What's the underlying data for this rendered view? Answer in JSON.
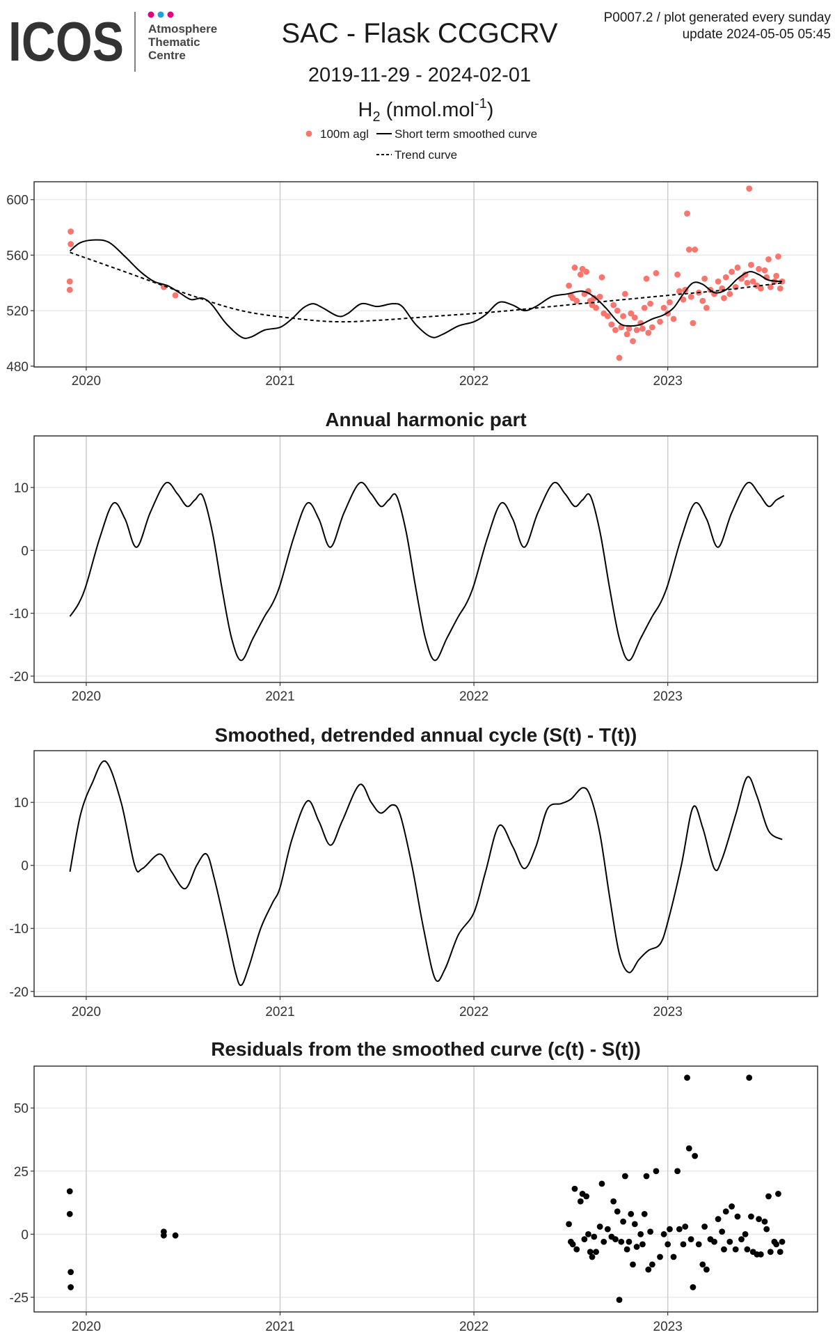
{
  "header": {
    "logo": "ICOS",
    "org": [
      "Atmosphere",
      "Thematic",
      "Centre"
    ],
    "meta": [
      "P0007.2 / plot generated every sunday",
      "update  2024-05-05 05:45"
    ]
  },
  "chart_data": [
    {
      "type": "line",
      "title": "SAC - Flask CCGCRV",
      "subtitle": "2019-11-29 - 2024-02-01",
      "ylabel": {
        "main": "H",
        "sub": "2",
        "unit": " (nmol.mol",
        "sup": "-1",
        "close": ")"
      },
      "xlim": [
        2019.731,
        2023.773
      ],
      "xticks": [
        2020,
        2021,
        2022,
        2023
      ],
      "ylim": [
        479.4,
        612.9
      ],
      "yticks": [
        480,
        520,
        560,
        600
      ],
      "grid": true,
      "legend": "top",
      "series": [
        {
          "name": "100m agl",
          "color": "#f8766d",
          "style": "points",
          "x": [
            2019.915,
            2019.915,
            2019.92,
            2019.92,
            2020.4,
            2020.46,
            2022.49,
            2022.5,
            2022.51,
            2022.52,
            2022.53,
            2022.55,
            2022.56,
            2022.57,
            2022.58,
            2022.59,
            2022.6,
            2022.61,
            2022.62,
            2022.63,
            2022.65,
            2022.66,
            2022.67,
            2022.69,
            2022.71,
            2022.72,
            2022.73,
            2022.74,
            2022.75,
            2022.76,
            2022.77,
            2022.78,
            2022.79,
            2022.8,
            2022.81,
            2022.82,
            2022.83,
            2022.84,
            2022.86,
            2022.87,
            2022.88,
            2022.89,
            2022.9,
            2022.91,
            2022.92,
            2022.94,
            2022.96,
            2022.98,
            2023.0,
            2023.01,
            2023.03,
            2023.05,
            2023.06,
            2023.08,
            2023.09,
            2023.1,
            2023.11,
            2023.12,
            2023.13,
            2023.14,
            2023.16,
            2023.18,
            2023.19,
            2023.2,
            2023.22,
            2023.24,
            2023.26,
            2023.28,
            2023.29,
            2023.3,
            2023.32,
            2023.33,
            2023.35,
            2023.36,
            2023.38,
            2023.4,
            2023.41,
            2023.42,
            2023.43,
            2023.44,
            2023.46,
            2023.47,
            2023.48,
            2023.5,
            2023.51,
            2023.52,
            2023.53,
            2023.55,
            2023.56,
            2023.57,
            2023.58,
            2023.59
          ],
          "values": [
            541,
            535,
            577,
            568,
            537,
            531,
            538,
            531,
            529,
            551,
            527,
            546,
            550,
            532,
            548,
            534,
            527,
            524,
            529,
            522,
            530,
            544,
            518,
            516,
            510,
            524,
            506,
            520,
            486,
            508,
            516,
            532,
            503,
            507,
            518,
            498,
            515,
            506,
            511,
            507,
            522,
            543,
            504,
            525,
            508,
            547,
            512,
            522,
            518,
            526,
            514,
            546,
            534,
            528,
            535,
            590,
            564,
            530,
            511,
            564,
            533,
            527,
            543,
            522,
            535,
            532,
            541,
            536,
            529,
            544,
            532,
            548,
            537,
            551,
            543,
            546,
            540,
            608,
            553,
            541,
            538,
            550,
            536,
            549,
            544,
            557,
            537,
            541,
            545,
            559,
            536,
            541
          ]
        },
        {
          "name": "Short term smoothed curve",
          "color": "#000000",
          "style": "solid",
          "x": [
            2019.916,
            2019.97,
            2020.05,
            2020.12,
            2020.2,
            2020.28,
            2020.35,
            2020.42,
            2020.48,
            2020.54,
            2020.6,
            2020.65,
            2020.72,
            2020.8,
            2020.85,
            2020.92,
            2021,
            2021.06,
            2021.12,
            2021.17,
            2021.22,
            2021.3,
            2021.35,
            2021.42,
            2021.5,
            2021.58,
            2021.63,
            2021.7,
            2021.78,
            2021.84,
            2021.92,
            2022,
            2022.06,
            2022.13,
            2022.2,
            2022.26,
            2022.32,
            2022.4,
            2022.48,
            2022.56,
            2022.62,
            2022.68,
            2022.75,
            2022.8,
            2022.86,
            2022.92,
            2022.98,
            2023.03,
            2023.08,
            2023.13,
            2023.18,
            2023.24,
            2023.3,
            2023.36,
            2023.42,
            2023.47,
            2023.52,
            2023.59
          ],
          "values": [
            563,
            569,
            571,
            569,
            559,
            548,
            541,
            538,
            533,
            528,
            529,
            524,
            511,
            501,
            501,
            506,
            508,
            514,
            522,
            525,
            522,
            516,
            518,
            525,
            523,
            525,
            523,
            510,
            501,
            503,
            509,
            512,
            517,
            526,
            524,
            520,
            523,
            530,
            532,
            534,
            530,
            522,
            511,
            509,
            510,
            514,
            517,
            522,
            532,
            540,
            539,
            533,
            535,
            543,
            548,
            546,
            542,
            541
          ]
        },
        {
          "name": "Trend curve",
          "color": "#000000",
          "style": "dashed",
          "x": [
            2019.916,
            2020.2,
            2020.5,
            2020.8,
            2021.1,
            2021.3,
            2021.5,
            2021.8,
            2022.1,
            2022.4,
            2022.7,
            2023,
            2023.3,
            2023.59
          ],
          "values": [
            562,
            548,
            533,
            520,
            514,
            512,
            513,
            516,
            519,
            523,
            527,
            531,
            535,
            540
          ]
        }
      ]
    },
    {
      "type": "line",
      "title": "Annual harmonic part",
      "xlim": [
        2019.731,
        2023.773
      ],
      "xticks": [
        2020,
        2021,
        2022,
        2023
      ],
      "ylim": [
        -21,
        18.2
      ],
      "yticks": [
        -20,
        -10,
        0,
        10
      ],
      "grid": true,
      "series": [
        {
          "color": "#000000",
          "style": "solid",
          "x": [
            2019.916,
            2019.96,
            2020,
            2020.07,
            2020.14,
            2020.2,
            2020.26,
            2020.33,
            2020.41,
            2020.47,
            2020.52,
            2020.56,
            2020.6,
            2020.65,
            2020.7,
            2020.75,
            2020.8,
            2020.86,
            2020.92,
            2020.96,
            2021,
            2021.07,
            2021.14,
            2021.2,
            2021.26,
            2021.33,
            2021.41,
            2021.47,
            2021.52,
            2021.56,
            2021.6,
            2021.65,
            2021.7,
            2021.75,
            2021.8,
            2021.86,
            2021.92,
            2021.96,
            2022,
            2022.07,
            2022.14,
            2022.2,
            2022.26,
            2022.33,
            2022.41,
            2022.47,
            2022.52,
            2022.56,
            2022.6,
            2022.65,
            2022.7,
            2022.75,
            2022.8,
            2022.86,
            2022.92,
            2022.96,
            2023,
            2023.07,
            2023.14,
            2023.2,
            2023.26,
            2023.33,
            2023.41,
            2023.47,
            2023.52,
            2023.56,
            2023.6
          ],
          "values": [
            -10.5,
            -8.5,
            -5.5,
            2,
            7.5,
            5,
            0.5,
            6,
            10.7,
            9,
            7,
            8,
            8.7,
            3,
            -6,
            -14,
            -17.5,
            -14,
            -10.5,
            -8.5,
            -5.5,
            2,
            7.5,
            5,
            0.5,
            6,
            10.7,
            9,
            7,
            8,
            8.7,
            3,
            -6,
            -14,
            -17.5,
            -14,
            -10.5,
            -8.5,
            -5.5,
            2,
            7.5,
            5,
            0.5,
            6,
            10.7,
            9,
            7,
            8,
            8.7,
            3,
            -6,
            -14,
            -17.5,
            -14,
            -10.5,
            -8.5,
            -5.5,
            2,
            7.5,
            5,
            0.5,
            6,
            10.7,
            9,
            7,
            8,
            8.7
          ]
        }
      ]
    },
    {
      "type": "line",
      "title": "Smoothed, detrended annual cycle (S(t) - T(t))",
      "xlim": [
        2019.731,
        2023.773
      ],
      "xticks": [
        2020,
        2021,
        2022,
        2023
      ],
      "ylim": [
        -20.8,
        18.2
      ],
      "yticks": [
        -20,
        -10,
        0,
        10
      ],
      "grid": true,
      "series": [
        {
          "color": "#000000",
          "style": "solid",
          "x": [
            2019.916,
            2019.97,
            2020.03,
            2020.1,
            2020.18,
            2020.25,
            2020.29,
            2020.38,
            2020.44,
            2020.51,
            2020.57,
            2020.62,
            2020.66,
            2020.72,
            2020.77,
            2020.8,
            2020.84,
            2020.9,
            2020.96,
            2021,
            2021.06,
            2021.14,
            2021.2,
            2021.26,
            2021.32,
            2021.41,
            2021.47,
            2021.52,
            2021.58,
            2021.62,
            2021.68,
            2021.74,
            2021.8,
            2021.85,
            2021.92,
            2022,
            2022.06,
            2022.13,
            2022.2,
            2022.26,
            2022.32,
            2022.38,
            2022.45,
            2022.5,
            2022.56,
            2022.6,
            2022.65,
            2022.7,
            2022.75,
            2022.8,
            2022.85,
            2022.9,
            2022.96,
            2023,
            2023.07,
            2023.13,
            2023.18,
            2023.24,
            2023.28,
            2023.35,
            2023.41,
            2023.46,
            2023.52,
            2023.59
          ],
          "values": [
            -1,
            8,
            13,
            16.5,
            10,
            0,
            -0.5,
            1.8,
            -1,
            -3.7,
            0,
            1.8,
            -2,
            -10,
            -17,
            -19,
            -16,
            -10,
            -6,
            -3.5,
            4,
            10.2,
            7,
            3.2,
            7,
            12.8,
            10,
            8.3,
            9.6,
            8,
            0,
            -10,
            -18,
            -16.5,
            -11,
            -7.5,
            -1,
            6.3,
            3,
            -0.5,
            3,
            9,
            9.8,
            10.5,
            12.3,
            11,
            5,
            -5,
            -14,
            -17,
            -15,
            -13.5,
            -12.5,
            -9,
            0,
            9.2,
            6,
            -0.5,
            1,
            8,
            14,
            11,
            5.5,
            4.1
          ]
        }
      ]
    },
    {
      "type": "scatter",
      "title": "Residuals from the smoothed curve (c(t) - S(t))",
      "xlim": [
        2019.731,
        2023.773
      ],
      "xticks": [
        2020,
        2021,
        2022,
        2023
      ],
      "ylim": [
        -30.8,
        66.6
      ],
      "yticks": [
        -25,
        0,
        25,
        50
      ],
      "grid": true,
      "series": [
        {
          "color": "#000000",
          "x": [
            2019.915,
            2019.915,
            2019.92,
            2019.92,
            2020.4,
            2020.4,
            2020.46,
            2022.49,
            2022.5,
            2022.51,
            2022.52,
            2022.53,
            2022.55,
            2022.56,
            2022.57,
            2022.58,
            2022.59,
            2022.6,
            2022.61,
            2022.62,
            2022.63,
            2022.65,
            2022.66,
            2022.67,
            2022.69,
            2022.71,
            2022.72,
            2022.73,
            2022.74,
            2022.75,
            2022.76,
            2022.77,
            2022.78,
            2022.79,
            2022.8,
            2022.81,
            2022.82,
            2022.83,
            2022.84,
            2022.86,
            2022.87,
            2022.88,
            2022.89,
            2022.9,
            2022.91,
            2022.92,
            2022.94,
            2022.96,
            2022.98,
            2023.0,
            2023.01,
            2023.03,
            2023.05,
            2023.06,
            2023.08,
            2023.09,
            2023.1,
            2023.11,
            2023.12,
            2023.13,
            2023.14,
            2023.16,
            2023.18,
            2023.19,
            2023.2,
            2023.22,
            2023.24,
            2023.26,
            2023.28,
            2023.29,
            2023.3,
            2023.32,
            2023.33,
            2023.35,
            2023.36,
            2023.38,
            2023.4,
            2023.41,
            2023.42,
            2023.43,
            2023.44,
            2023.46,
            2023.47,
            2023.48,
            2023.5,
            2023.51,
            2023.52,
            2023.53,
            2023.55,
            2023.56,
            2023.57,
            2023.58,
            2023.59
          ],
          "values": [
            17,
            8,
            -15,
            -21,
            1,
            -0.5,
            -0.5,
            4,
            -3,
            -4,
            18,
            -6,
            13,
            16,
            -2,
            15,
            0,
            -7,
            -9,
            -1,
            -7,
            3,
            20,
            -3,
            2,
            -1,
            13,
            -2,
            9,
            -26,
            -3,
            5,
            23,
            -6,
            -3,
            8,
            -12,
            4,
            -5,
            0,
            -4,
            8,
            23,
            -14,
            1,
            -12,
            25,
            -9,
            0,
            -4,
            2,
            -9,
            25,
            2,
            -4,
            3,
            62,
            34,
            -2,
            -21,
            31,
            -4,
            -12,
            3,
            -14,
            -2,
            -3,
            6,
            1,
            -6,
            9,
            -3,
            11,
            -6,
            7,
            -2,
            0,
            -6,
            62,
            7,
            -7,
            -8,
            6,
            -8,
            5,
            2,
            15,
            -7,
            -3,
            -4,
            16,
            -7,
            -3
          ]
        }
      ]
    }
  ]
}
